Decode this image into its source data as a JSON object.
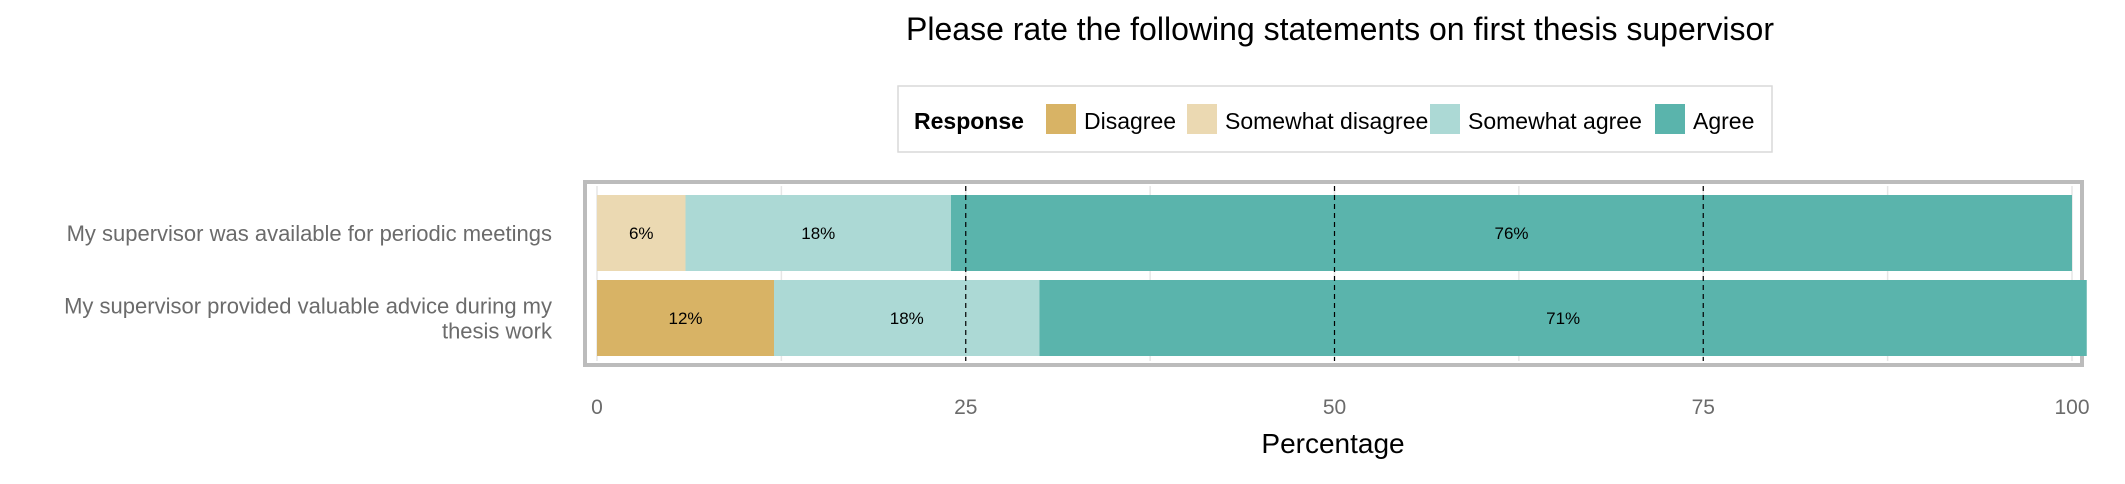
{
  "chart_data": {
    "type": "bar",
    "orientation": "horizontal",
    "stacked": true,
    "title": "Please rate the following statements on first thesis supervisor",
    "xlabel": "Percentage",
    "ylabel": "",
    "xlim": [
      0,
      100
    ],
    "x_ticks": [
      0,
      25,
      50,
      75,
      100
    ],
    "grid": true,
    "legend_title": "Response",
    "legend_position": "top",
    "categories": [
      "My supervisor was available for periodic meetings",
      "My supervisor provided valuable advice during my thesis work"
    ],
    "category_label_lines": [
      [
        "My supervisor was available for periodic meetings"
      ],
      [
        "My supervisor provided valuable advice during my",
        "thesis work"
      ]
    ],
    "series": [
      {
        "name": "Disagree",
        "color": "#d8b365",
        "values": [
          0,
          12
        ],
        "labels": [
          "",
          "12%"
        ]
      },
      {
        "name": "Somewhat disagree",
        "color": "#ebd9b2",
        "values": [
          6,
          0
        ],
        "labels": [
          "6%",
          ""
        ]
      },
      {
        "name": "Somewhat agree",
        "color": "#acd9d5",
        "values": [
          18,
          18
        ],
        "labels": [
          "18%",
          "18%"
        ]
      },
      {
        "name": "Agree",
        "color": "#5ab4ac",
        "values": [
          76,
          71
        ],
        "labels": [
          "76%",
          "71%"
        ]
      }
    ]
  }
}
